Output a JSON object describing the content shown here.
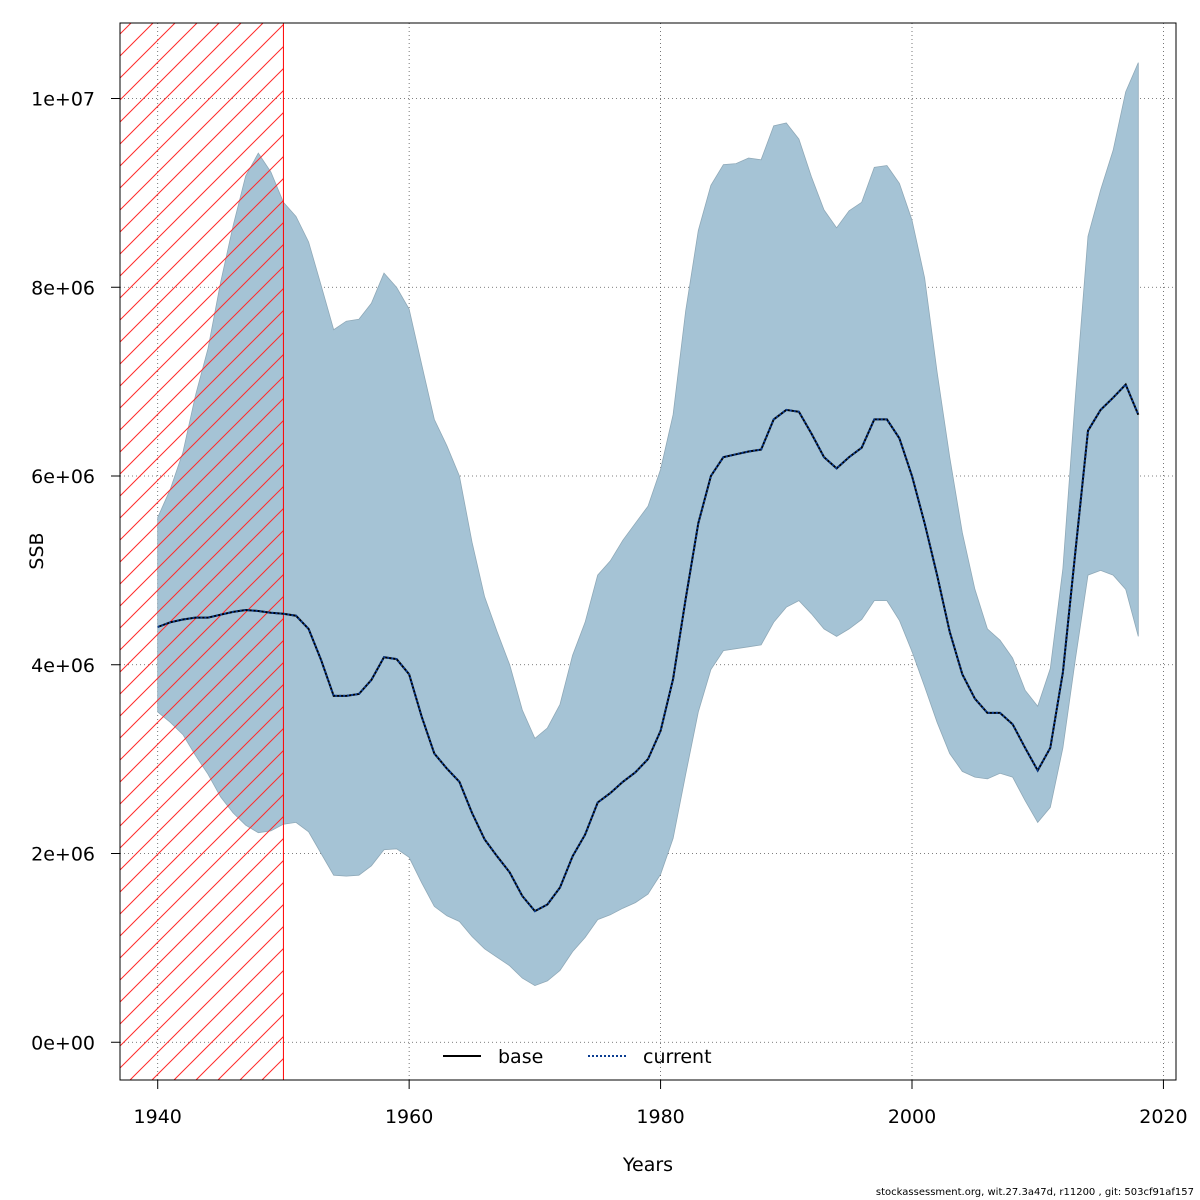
{
  "chart_data": {
    "type": "area",
    "xlabel": "Years",
    "ylabel": "SSB",
    "xlim": [
      1937,
      2021
    ],
    "ylim": [
      -400000,
      10800000
    ],
    "x_ticks": [
      1940,
      1960,
      1980,
      2000,
      2020
    ],
    "x_tick_labels": [
      "1940",
      "1960",
      "1980",
      "2000",
      "2020"
    ],
    "y_ticks": [
      0,
      2000000,
      4000000,
      6000000,
      8000000,
      10000000
    ],
    "y_tick_labels": [
      "0e+00",
      "2e+06",
      "4e+06",
      "6e+06",
      "8e+06",
      "1e+07"
    ],
    "grid": true,
    "legend": {
      "placement": "bottom",
      "entries": [
        "base",
        "current"
      ]
    },
    "hatched_region": {
      "x_from": 1937,
      "x_to": 1950,
      "color": "#ff0000"
    },
    "band_color": "#a5c3d5",
    "years": [
      1940,
      1941,
      1942,
      1943,
      1944,
      1945,
      1946,
      1947,
      1948,
      1949,
      1950,
      1951,
      1952,
      1953,
      1954,
      1955,
      1956,
      1957,
      1958,
      1959,
      1960,
      1961,
      1962,
      1963,
      1964,
      1965,
      1966,
      1967,
      1968,
      1969,
      1970,
      1971,
      1972,
      1973,
      1974,
      1975,
      1976,
      1977,
      1978,
      1979,
      1980,
      1981,
      1982,
      1983,
      1984,
      1985,
      1986,
      1987,
      1988,
      1989,
      1990,
      1991,
      1992,
      1993,
      1994,
      1995,
      1996,
      1997,
      1998,
      1999,
      2000,
      2001,
      2002,
      2003,
      2004,
      2005,
      2006,
      2007,
      2008,
      2009,
      2010,
      2011,
      2012,
      2013,
      2014,
      2015,
      2016,
      2017,
      2018
    ],
    "series": [
      {
        "name": "base",
        "color": "#000000",
        "style": "solid",
        "values": [
          4400000,
          4450000,
          4480000,
          4500000,
          4500000,
          4530000,
          4560000,
          4580000,
          4570000,
          4550000,
          4540000,
          4520000,
          4380000,
          4050000,
          3670000,
          3670000,
          3690000,
          3840000,
          4080000,
          4060000,
          3900000,
          3450000,
          3060000,
          2900000,
          2760000,
          2430000,
          2150000,
          1970000,
          1800000,
          1550000,
          1390000,
          1460000,
          1640000,
          1970000,
          2200000,
          2540000,
          2640000,
          2760000,
          2860000,
          3000000,
          3300000,
          3850000,
          4700000,
          5500000,
          6000000,
          6200000,
          6230000,
          6260000,
          6280000,
          6600000,
          6700000,
          6680000,
          6450000,
          6200000,
          6080000,
          6200000,
          6300000,
          6600000,
          6600000,
          6400000,
          6000000,
          5500000,
          4950000,
          4350000,
          3900000,
          3640000,
          3490000,
          3490000,
          3370000,
          3120000,
          2880000,
          3120000,
          3920000,
          5200000,
          6480000,
          6700000,
          6830000,
          6970000,
          6650000
        ]
      },
      {
        "name": "current",
        "color": "#0b3d91",
        "style": "dotted",
        "values": [
          4400000,
          4450000,
          4480000,
          4500000,
          4500000,
          4530000,
          4560000,
          4580000,
          4570000,
          4550000,
          4540000,
          4520000,
          4380000,
          4050000,
          3670000,
          3670000,
          3690000,
          3840000,
          4080000,
          4060000,
          3900000,
          3450000,
          3060000,
          2900000,
          2760000,
          2430000,
          2150000,
          1970000,
          1800000,
          1550000,
          1390000,
          1460000,
          1640000,
          1970000,
          2200000,
          2540000,
          2640000,
          2760000,
          2860000,
          3000000,
          3300000,
          3850000,
          4700000,
          5500000,
          6000000,
          6200000,
          6230000,
          6260000,
          6280000,
          6600000,
          6700000,
          6680000,
          6450000,
          6200000,
          6080000,
          6200000,
          6300000,
          6600000,
          6600000,
          6400000,
          6000000,
          5500000,
          4950000,
          4350000,
          3900000,
          3640000,
          3490000,
          3490000,
          3370000,
          3120000,
          2880000,
          3120000,
          3920000,
          5200000,
          6480000,
          6700000,
          6830000,
          6970000,
          6650000
        ]
      }
    ],
    "band_upper": [
      5560000,
      5860000,
      6250000,
      6850000,
      7350000,
      8050000,
      8650000,
      9180000,
      9420000,
      9220000,
      8900000,
      8750000,
      8480000,
      8020000,
      7550000,
      7640000,
      7660000,
      7830000,
      8150000,
      8000000,
      7770000,
      7180000,
      6600000,
      6320000,
      6000000,
      5300000,
      4720000,
      4350000,
      4000000,
      3520000,
      3220000,
      3330000,
      3580000,
      4100000,
      4450000,
      4950000,
      5100000,
      5320000,
      5500000,
      5680000,
      6070000,
      6650000,
      7750000,
      8600000,
      9080000,
      9300000,
      9310000,
      9370000,
      9350000,
      9710000,
      9740000,
      9570000,
      9170000,
      8820000,
      8630000,
      8810000,
      8900000,
      9270000,
      9290000,
      9100000,
      8710000,
      8100000,
      7100000,
      6200000,
      5400000,
      4800000,
      4380000,
      4260000,
      4070000,
      3730000,
      3560000,
      3960000,
      5020000,
      6840000,
      8540000,
      9030000,
      9450000,
      10070000,
      10380000
    ],
    "band_lower": [
      3500000,
      3390000,
      3260000,
      3040000,
      2840000,
      2600000,
      2430000,
      2300000,
      2220000,
      2240000,
      2310000,
      2330000,
      2230000,
      2000000,
      1770000,
      1760000,
      1770000,
      1870000,
      2040000,
      2050000,
      1960000,
      1690000,
      1440000,
      1340000,
      1280000,
      1120000,
      990000,
      900000,
      810000,
      680000,
      600000,
      650000,
      760000,
      960000,
      1110000,
      1300000,
      1350000,
      1420000,
      1480000,
      1570000,
      1780000,
      2160000,
      2840000,
      3500000,
      3950000,
      4150000,
      4170000,
      4190000,
      4210000,
      4450000,
      4610000,
      4680000,
      4540000,
      4380000,
      4300000,
      4380000,
      4480000,
      4680000,
      4680000,
      4470000,
      4140000,
      3770000,
      3390000,
      3060000,
      2870000,
      2810000,
      2790000,
      2850000,
      2810000,
      2560000,
      2330000,
      2490000,
      3120000,
      4060000,
      4950000,
      5000000,
      4950000,
      4800000,
      4300000
    ]
  },
  "footer": "stockassessment.org, wit.27.3a47d, r11200 , git: 503cf91af157"
}
